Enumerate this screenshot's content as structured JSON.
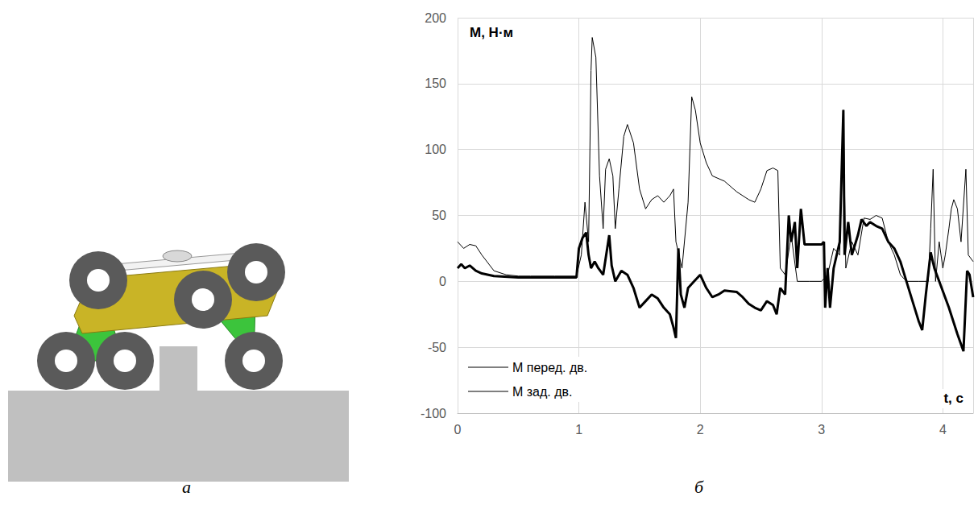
{
  "panel_labels": [
    "а",
    "б"
  ],
  "chart_data": {
    "type": "line",
    "y_label": "М, Н·м",
    "x_label": "t, с",
    "xlim": [
      0,
      4.25
    ],
    "xticks": [
      0,
      1,
      2,
      3,
      4
    ],
    "ylim": [
      -100,
      200
    ],
    "yticks": [
      -100,
      -50,
      0,
      50,
      100,
      150,
      200
    ],
    "grid": true,
    "legend": "lower left",
    "series": [
      {
        "name": "М перед. дв.",
        "color": "#000000",
        "line_style": "thick",
        "x": [
          0,
          0.03,
          0.06,
          0.1,
          0.15,
          0.2,
          0.3,
          0.5,
          0.98,
          1.0,
          1.03,
          1.06,
          1.08,
          1.1,
          1.13,
          1.16,
          1.2,
          1.25,
          1.27,
          1.3,
          1.35,
          1.4,
          1.45,
          1.5,
          1.55,
          1.6,
          1.65,
          1.7,
          1.75,
          1.78,
          1.8,
          1.82,
          1.84,
          1.87,
          1.9,
          1.95,
          2.0,
          2.05,
          2.1,
          2.15,
          2.2,
          2.3,
          2.35,
          2.4,
          2.45,
          2.5,
          2.55,
          2.6,
          2.63,
          2.66,
          2.7,
          2.73,
          2.75,
          2.78,
          2.8,
          2.83,
          2.86,
          2.9,
          2.95,
          3.0,
          3.02,
          3.03,
          3.05,
          3.07,
          3.1,
          3.15,
          3.18,
          3.19,
          3.22,
          3.25,
          3.3,
          3.33,
          3.37,
          3.4,
          3.45,
          3.5,
          3.55,
          3.6,
          3.65,
          3.7,
          3.75,
          3.8,
          3.83,
          3.86,
          3.9,
          3.93,
          3.97,
          4.05,
          4.12,
          4.17,
          4.2,
          4.22,
          4.25
        ],
        "values": [
          10,
          13,
          10,
          12,
          8,
          6,
          4,
          3,
          3,
          25,
          33,
          37,
          20,
          10,
          15,
          10,
          5,
          35,
          12,
          0,
          8,
          5,
          -5,
          -20,
          -15,
          -10,
          -13,
          -20,
          -25,
          -35,
          -43,
          25,
          -10,
          -20,
          -5,
          0,
          5,
          -5,
          -12,
          -10,
          -7,
          -8,
          -12,
          -17,
          -20,
          -22,
          -15,
          -18,
          -25,
          -5,
          -10,
          50,
          30,
          45,
          10,
          55,
          28,
          28,
          28,
          28,
          30,
          -20,
          10,
          -20,
          10,
          30,
          130,
          20,
          45,
          20,
          35,
          47,
          42,
          45,
          42,
          40,
          30,
          25,
          15,
          0,
          -15,
          -30,
          -37,
          -10,
          22,
          10,
          0,
          -20,
          -40,
          -53,
          8,
          5,
          -12
        ]
      },
      {
        "name": "М зад. дв.",
        "color": "#000000",
        "line_style": "thin",
        "x": [
          0,
          0.05,
          0.1,
          0.15,
          0.2,
          0.3,
          0.4,
          0.5,
          0.6,
          0.8,
          0.98,
          1.02,
          1.05,
          1.08,
          1.1,
          1.11,
          1.14,
          1.17,
          1.2,
          1.22,
          1.25,
          1.28,
          1.3,
          1.33,
          1.37,
          1.4,
          1.45,
          1.5,
          1.55,
          1.6,
          1.65,
          1.7,
          1.75,
          1.78,
          1.8,
          1.85,
          1.9,
          1.93,
          1.96,
          2.0,
          2.05,
          2.1,
          2.2,
          2.3,
          2.4,
          2.45,
          2.5,
          2.55,
          2.6,
          2.64,
          2.66,
          2.7,
          2.75,
          2.8,
          2.9,
          3.0,
          3.05,
          3.1,
          3.15,
          3.18,
          3.2,
          3.25,
          3.3,
          3.35,
          3.4,
          3.45,
          3.5,
          3.55,
          3.6,
          3.65,
          3.7,
          3.8,
          3.88,
          3.9,
          3.92,
          3.94,
          3.97,
          4.0,
          4.02,
          4.05,
          4.07,
          4.09,
          4.12,
          4.15,
          4.19,
          4.21,
          4.25
        ],
        "values": [
          30,
          25,
          28,
          27,
          20,
          8,
          5,
          4,
          4,
          4,
          4,
          20,
          60,
          30,
          160,
          185,
          170,
          80,
          40,
          85,
          93,
          80,
          40,
          70,
          110,
          119,
          105,
          70,
          55,
          62,
          65,
          60,
          65,
          70,
          30,
          10,
          60,
          140,
          130,
          105,
          90,
          80,
          76,
          68,
          62,
          60,
          70,
          84,
          86,
          84,
          10,
          5,
          35,
          0,
          0,
          0,
          5,
          25,
          20,
          130,
          10,
          30,
          20,
          48,
          47,
          50,
          48,
          30,
          20,
          5,
          0,
          0,
          0,
          40,
          85,
          0,
          30,
          10,
          20,
          40,
          55,
          62,
          55,
          30,
          85,
          20,
          15
        ]
      }
    ]
  }
}
